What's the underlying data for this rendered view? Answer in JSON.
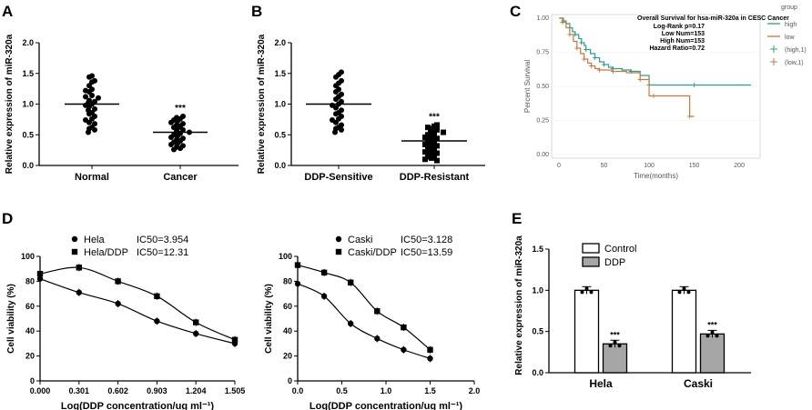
{
  "panel_labels": {
    "a": "A",
    "b": "B",
    "c": "C",
    "d": "D",
    "e": "E"
  },
  "chart_data": [
    {
      "id": "A",
      "type": "scatter",
      "ylabel": "Relative expression of miR-320a",
      "ylim": [
        0,
        2.0
      ],
      "yticks": [
        "0.0",
        "0.5",
        "1.0",
        "1.5",
        "2.0"
      ],
      "categories": [
        "Normal",
        "Cancer"
      ],
      "means": [
        1.0,
        0.54
      ],
      "sig": "***",
      "points": [
        [
          1.44,
          1.46,
          1.38,
          1.36,
          1.3,
          1.24,
          1.22,
          1.2,
          1.14,
          1.12,
          1.1,
          1.06,
          1.04,
          1.02,
          1.0,
          0.98,
          0.96,
          0.92,
          0.9,
          0.86,
          0.84,
          0.8,
          0.76,
          0.74,
          0.7,
          0.68,
          0.62,
          0.6,
          0.58,
          0.54
        ],
        [
          0.8,
          0.78,
          0.76,
          0.74,
          0.72,
          0.7,
          0.68,
          0.66,
          0.64,
          0.62,
          0.6,
          0.58,
          0.56,
          0.54,
          0.52,
          0.5,
          0.48,
          0.46,
          0.44,
          0.42,
          0.4,
          0.38,
          0.36,
          0.34,
          0.32,
          0.3,
          0.28,
          0.26
        ]
      ]
    },
    {
      "id": "B",
      "type": "scatter",
      "ylabel": "Relative expression of miR-320a",
      "ylim": [
        0,
        2.0
      ],
      "yticks": [
        "0.0",
        "0.5",
        "1.0",
        "1.5",
        "2.0"
      ],
      "categories": [
        "DDP-Sensitive",
        "DDP-Resistant"
      ],
      "means": [
        1.0,
        0.4
      ],
      "sig": "***",
      "points": [
        [
          1.52,
          1.48,
          1.44,
          1.38,
          1.34,
          1.3,
          1.24,
          1.2,
          1.16,
          1.12,
          1.08,
          1.04,
          1.0,
          0.98,
          0.94,
          0.9,
          0.86,
          0.84,
          0.8,
          0.76,
          0.74,
          0.7,
          0.66,
          0.62,
          0.6,
          0.58,
          0.54
        ],
        [
          0.66,
          0.64,
          0.62,
          0.6,
          0.58,
          0.56,
          0.54,
          0.52,
          0.5,
          0.48,
          0.46,
          0.44,
          0.42,
          0.4,
          0.38,
          0.36,
          0.34,
          0.32,
          0.3,
          0.28,
          0.26,
          0.24,
          0.22,
          0.2,
          0.18,
          0.16,
          0.14,
          0.12,
          0.1,
          0.08
        ]
      ]
    },
    {
      "id": "C",
      "type": "line",
      "title": "Overall Survival for hsa-miR-320a in CESC Cancer",
      "stats": [
        "Log-Rank p=0.17",
        "Low Num=153",
        "High Num=153",
        "Hazard Ratio=0.72"
      ],
      "ylabel": "Percent Survival",
      "xlabel": "Time(months)",
      "xlim": [
        0,
        215
      ],
      "ylim": [
        0,
        1.0
      ],
      "xticks": [
        "0",
        "50",
        "100",
        "150",
        "200"
      ],
      "yticks": [
        "0.00",
        "0.25",
        "0.50",
        "0.75",
        "1.00"
      ],
      "legend_title": "group",
      "legend": [
        "high",
        "low",
        "(high,1)",
        "(low,1)"
      ],
      "colors": {
        "high": "#2a9d8f",
        "low": "#c8793a"
      },
      "series": [
        {
          "name": "high",
          "x": [
            0,
            5,
            8,
            12,
            15,
            18,
            22,
            25,
            28,
            30,
            35,
            40,
            45,
            50,
            55,
            60,
            70,
            80,
            90,
            100,
            110,
            150,
            213
          ],
          "y": [
            1.0,
            0.98,
            0.96,
            0.93,
            0.9,
            0.88,
            0.85,
            0.82,
            0.8,
            0.77,
            0.74,
            0.71,
            0.68,
            0.66,
            0.64,
            0.63,
            0.62,
            0.61,
            0.58,
            0.51,
            0.51,
            0.51,
            0.51
          ]
        },
        {
          "name": "low",
          "x": [
            0,
            4,
            8,
            12,
            16,
            20,
            24,
            28,
            32,
            36,
            40,
            45,
            50,
            60,
            75,
            90,
            100,
            105,
            140,
            145,
            150
          ],
          "y": [
            1.0,
            0.97,
            0.93,
            0.88,
            0.83,
            0.78,
            0.74,
            0.7,
            0.67,
            0.65,
            0.63,
            0.62,
            0.62,
            0.61,
            0.6,
            0.55,
            0.43,
            0.43,
            0.43,
            0.28,
            0.28
          ]
        }
      ]
    },
    {
      "id": "D1",
      "type": "line",
      "ylabel": "Cell viability (%)",
      "xlabel": "Log(DDP concentration/ug ml⁻¹)",
      "xlim": [
        0,
        1.505
      ],
      "ylim": [
        0,
        100
      ],
      "xticks": [
        "0.000",
        "0.301",
        "0.602",
        "0.903",
        "1.204",
        "1.505"
      ],
      "yticks": [
        "0",
        "20",
        "40",
        "60",
        "80",
        "100"
      ],
      "series": [
        {
          "name": "Hela",
          "ic50": "IC50=3.954",
          "marker": "circle",
          "x": [
            0,
            0.301,
            0.602,
            0.903,
            1.204,
            1.505
          ],
          "y": [
            82,
            71,
            62,
            48,
            38,
            30
          ]
        },
        {
          "name": "Hela/DDP",
          "ic50": "IC50=12.31",
          "marker": "square",
          "x": [
            0,
            0.301,
            0.602,
            0.903,
            1.204,
            1.505
          ],
          "y": [
            86,
            91,
            80,
            68,
            47,
            33
          ]
        }
      ]
    },
    {
      "id": "D2",
      "type": "line",
      "ylabel": "Cell viability (%)",
      "xlabel": "Log(DDP concentration/ug ml⁻¹)",
      "xlim": [
        0,
        2.0
      ],
      "ylim": [
        0,
        100
      ],
      "xticks": [
        "0.0",
        "0.5",
        "1.0",
        "1.5",
        "2.0"
      ],
      "yticks": [
        "0",
        "20",
        "40",
        "60",
        "80",
        "100"
      ],
      "series": [
        {
          "name": "Caski",
          "ic50": "IC50=3.128",
          "marker": "circle",
          "x": [
            0,
            0.3,
            0.6,
            0.9,
            1.2,
            1.5
          ],
          "y": [
            78,
            68,
            46,
            34,
            25,
            18
          ]
        },
        {
          "name": "Caski/DDP",
          "ic50": "IC50=13.59",
          "marker": "square",
          "x": [
            0,
            0.3,
            0.6,
            0.9,
            1.2,
            1.5
          ],
          "y": [
            93,
            87,
            79,
            56,
            43,
            25
          ]
        }
      ]
    },
    {
      "id": "E",
      "type": "bar",
      "ylabel": "Relative expression of miR-320a",
      "categories": [
        "Hela",
        "Caski"
      ],
      "ylim": [
        0,
        1.5
      ],
      "yticks": [
        "0.0",
        "0.5",
        "1.0",
        "1.5"
      ],
      "series": [
        {
          "name": "Control",
          "values": [
            1.0,
            1.0
          ],
          "color": "#ffffff"
        },
        {
          "name": "DDP",
          "values": [
            0.35,
            0.47
          ],
          "color": "#a6a6a6"
        }
      ],
      "sig": [
        "***",
        "***"
      ]
    }
  ]
}
